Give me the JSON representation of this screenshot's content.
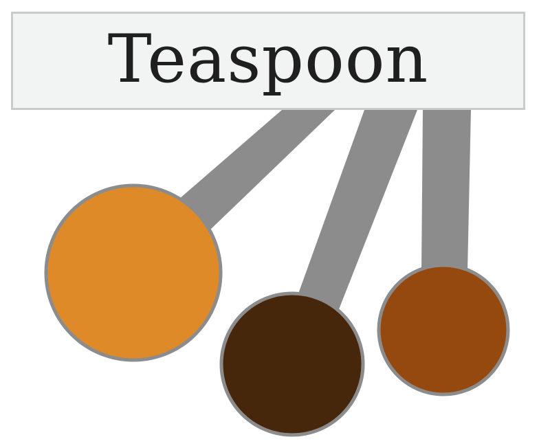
{
  "label": {
    "text": "Teaspoon"
  },
  "colors": {
    "label_background": "#f2f4f3",
    "label_border": "#c9cbca",
    "handle": "#8c8c8c",
    "spoon_outline": "#8c8c8c",
    "spoon_left": "#de8a29",
    "spoon_middle": "#47270c",
    "spoon_right": "#96490f"
  },
  "icons": [
    "measuring-spoon-icon",
    "measuring-spoon-icon",
    "measuring-spoon-icon"
  ]
}
